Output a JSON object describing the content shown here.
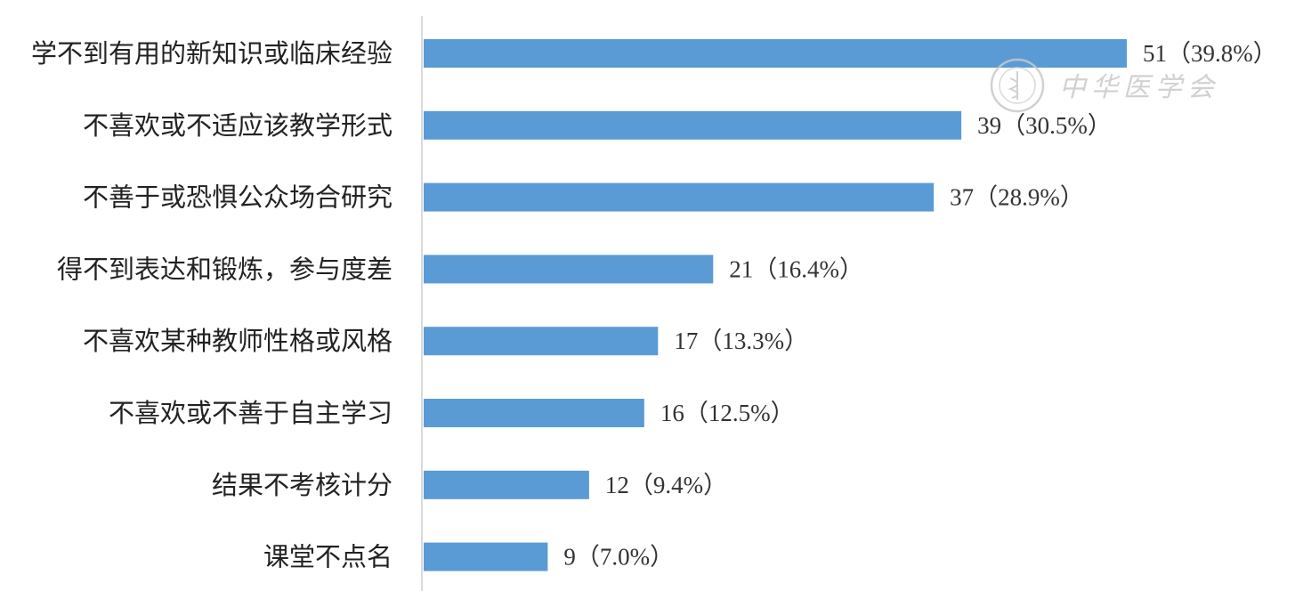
{
  "chart_data": {
    "type": "bar",
    "orientation": "horizontal",
    "categories": [
      "学不到有用的新知识或临床经验",
      "不喜欢或不适应该教学形式",
      "不善于或恐惧公众场合研究",
      "得不到表达和锻炼，参与度差",
      "不喜欢某种教师性格或风格",
      "不喜欢或不善于自主学习",
      "结果不考核计分",
      "课堂不点名"
    ],
    "values": [
      51,
      39,
      37,
      21,
      17,
      16,
      12,
      9
    ],
    "data_labels": [
      "51（39.8%）",
      "39（30.5%）",
      "37（28.9%）",
      "21（16.4%）",
      "17（13.3%）",
      "16（12.5%）",
      "12（9.4%）",
      "9（7.0%）"
    ],
    "title": "",
    "xlabel": "",
    "ylabel": "",
    "xlim": [
      0,
      51
    ],
    "grid": false,
    "legend": "none",
    "bar_color": "#5b9bd5",
    "axis_color": "#d9d9d9"
  },
  "watermark": {
    "text": "中华医学会",
    "color": "#c9c9c9"
  }
}
